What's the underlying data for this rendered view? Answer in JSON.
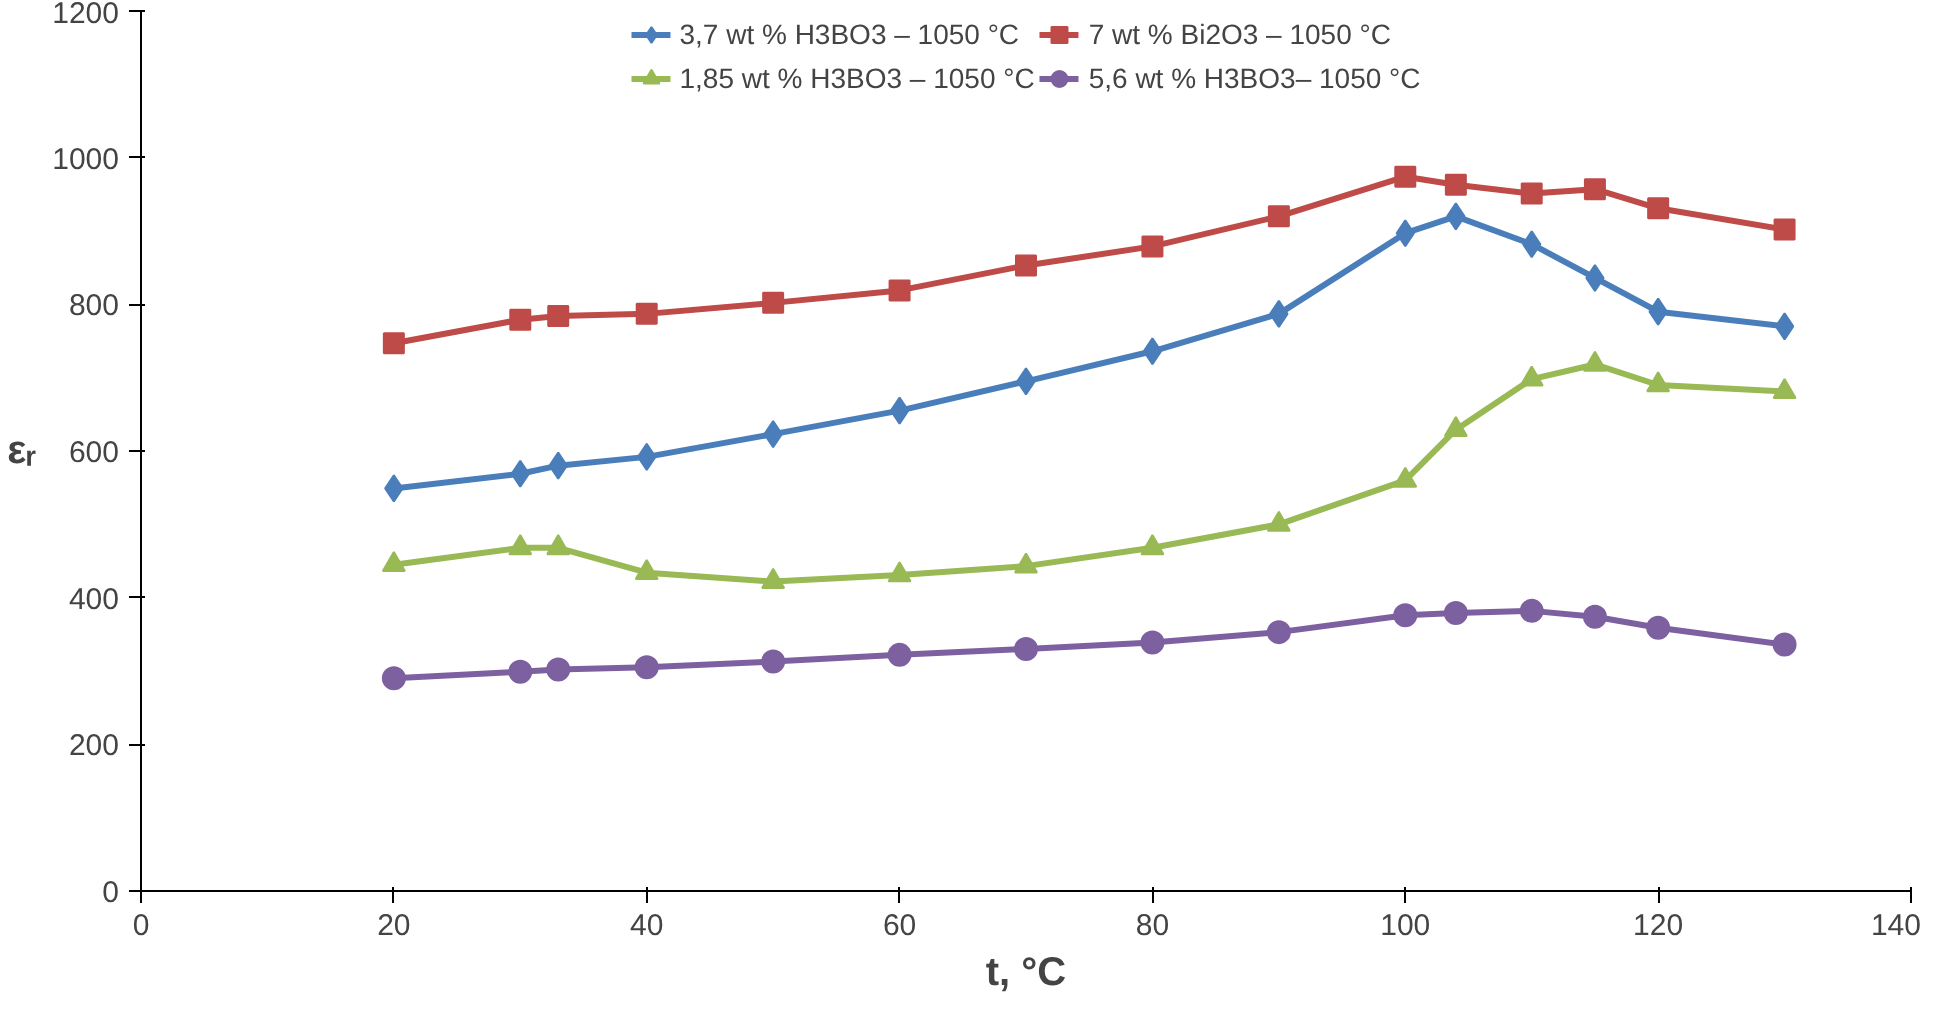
{
  "chart_data": {
    "type": "line",
    "xlabel": "t, °C",
    "ylabel": "εᵣ",
    "xlim": [
      0,
      140
    ],
    "ylim": [
      0,
      1200
    ],
    "xticks": [
      0,
      20,
      40,
      60,
      80,
      100,
      120,
      140
    ],
    "yticks": [
      0,
      200,
      400,
      600,
      800,
      1000,
      1200
    ],
    "x": [
      20,
      30,
      33,
      40,
      50,
      60,
      70,
      80,
      90,
      100,
      104,
      110,
      115,
      120,
      130
    ],
    "grid": false,
    "legend": "top",
    "line_style": "solid",
    "series": [
      {
        "name": "3,7 wt % H3BO3 – 1050 °C",
        "color": "#4a7ebb",
        "marker": "diamond",
        "values": [
          549,
          569,
          580,
          592,
          623,
          655,
          695,
          736,
          787,
          897,
          920,
          882,
          836,
          790,
          770
        ]
      },
      {
        "name": "7 wt % Bi2O3 – 1050 °C",
        "color": "#be4b48",
        "marker": "square",
        "values": [
          747,
          779,
          784,
          787,
          802,
          819,
          853,
          879,
          920,
          974,
          963,
          951,
          957,
          931,
          902
        ]
      },
      {
        "name": "1,85 wt % H3BO3 – 1050 °C",
        "color": "#98b954",
        "marker": "triangle",
        "values": [
          445,
          468,
          468,
          434,
          422,
          431,
          443,
          468,
          500,
          560,
          629,
          698,
          718,
          690,
          681
        ]
      },
      {
        "name": "5,6 wt % H3BO3– 1050 °C",
        "color": "#7d60a0",
        "marker": "circle",
        "values": [
          290,
          299,
          302,
          305,
          313,
          322,
          330,
          339,
          353,
          376,
          379,
          382,
          374,
          359,
          336
        ]
      }
    ]
  }
}
